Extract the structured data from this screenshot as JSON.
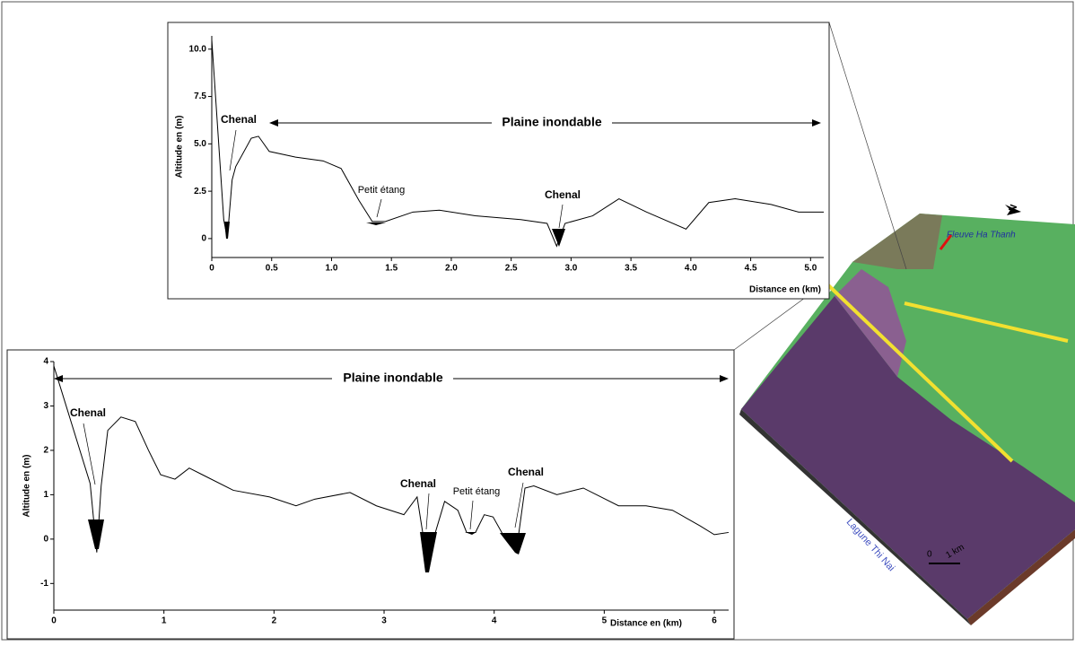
{
  "chart_data": [
    {
      "type": "line",
      "y_label": "Altitude en (m)",
      "x_label": "Distance en (km)",
      "annotations": [
        "Plaine inondable",
        "Chenal",
        "Petit étang",
        "Chenal"
      ],
      "x": [
        0,
        0.1,
        0.13,
        0.17,
        0.2,
        0.33,
        0.39,
        0.48,
        0.7,
        0.93,
        1.08,
        1.23,
        1.34,
        1.45,
        1.68,
        1.9,
        2.2,
        2.58,
        2.8,
        2.88,
        2.95,
        3.18,
        3.4,
        3.63,
        3.96,
        4.15,
        4.37,
        4.67,
        4.9,
        5.11
      ],
      "values": [
        10.5,
        1.0,
        0.0,
        3.1,
        3.8,
        5.3,
        5.4,
        4.6,
        4.3,
        4.1,
        3.7,
        2.0,
        0.9,
        0.9,
        1.4,
        1.5,
        1.2,
        1.0,
        0.8,
        -0.4,
        0.8,
        1.2,
        2.1,
        1.4,
        0.5,
        1.9,
        2.1,
        1.8,
        1.4,
        1.4
      ],
      "color": "#000000",
      "xlim": [
        0,
        5.11
      ],
      "ylim": [
        -1,
        10.7
      ],
      "xticks": [
        0,
        0.5,
        {
          "value": 1,
          "label": "1.0"
        },
        1.5,
        {
          "value": 2,
          "label": "2.0"
        },
        2.5,
        {
          "value": 3,
          "label": "3.0"
        },
        3.5,
        {
          "value": 4,
          "label": "4.0"
        },
        4.5,
        {
          "value": 5,
          "label": "5.0"
        }
      ],
      "yticks": [
        0,
        2.5,
        {
          "value": 5,
          "label": "5.0"
        },
        7.5,
        {
          "value": 10,
          "label": "10.0"
        }
      ]
    },
    {
      "type": "line",
      "y_label": "Altitude en (m)",
      "x_label": "Distance en (km)",
      "annotations": [
        "Plaine inondable",
        "Chenal",
        "Chenal",
        "Petit étang",
        "Chenal"
      ],
      "x": [
        0,
        0.33,
        0.39,
        0.43,
        0.49,
        0.61,
        0.74,
        0.86,
        0.97,
        1.1,
        1.23,
        1.35,
        1.63,
        1.96,
        2.2,
        2.37,
        2.69,
        2.93,
        3.18,
        3.3,
        3.36,
        3.39,
        3.46,
        3.55,
        3.67,
        3.75,
        3.83,
        3.91,
        3.99,
        4.08,
        4.2,
        4.28,
        4.36,
        4.57,
        4.81,
        5.13,
        5.38,
        5.62,
        5.87,
        6.0,
        6.13
      ],
      "values": [
        3.9,
        1.25,
        -0.3,
        1.2,
        2.45,
        2.75,
        2.65,
        2.0,
        1.45,
        1.35,
        1.6,
        1.45,
        1.1,
        0.95,
        0.75,
        0.9,
        1.05,
        0.75,
        0.55,
        0.95,
        0.0,
        -0.75,
        0.1,
        0.85,
        0.65,
        0.15,
        0.15,
        0.55,
        0.5,
        0.1,
        -0.3,
        1.15,
        1.2,
        1.0,
        1.15,
        0.75,
        0.75,
        0.65,
        0.3,
        0.1,
        0.15
      ],
      "color": "#000000",
      "xlim": [
        0,
        6.13
      ],
      "ylim": [
        -1.6,
        4
      ],
      "xticks": [
        0,
        1,
        2,
        3,
        4,
        5,
        6
      ],
      "yticks": [
        -1,
        0,
        1,
        2,
        3,
        4
      ]
    }
  ],
  "map": {
    "river": "Fleuve Ha Thanh",
    "lagoon": "Lagune Thi Nai",
    "scale_start": "0",
    "scale_end": "1 km",
    "north": "N"
  }
}
